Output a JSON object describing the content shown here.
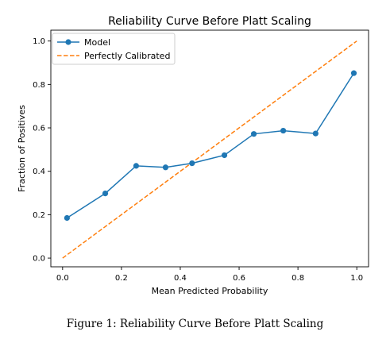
{
  "chart_data": {
    "type": "line",
    "title": "Reliability Curve Before Platt Scaling",
    "xlabel": "Mean Predicted Probability",
    "ylabel": "Fraction of Positives",
    "xlim": [
      -0.04,
      1.04
    ],
    "ylim": [
      -0.04,
      1.05
    ],
    "xticks": [
      0.0,
      0.2,
      0.4,
      0.6,
      0.8,
      1.0
    ],
    "xtick_labels": [
      "0.0",
      "0.2",
      "0.4",
      "0.6",
      "0.8",
      "1.0"
    ],
    "yticks": [
      0.0,
      0.2,
      0.4,
      0.6,
      0.8,
      1.0
    ],
    "ytick_labels": [
      "0.0",
      "0.2",
      "0.4",
      "0.6",
      "0.8",
      "1.0"
    ],
    "grid": false,
    "legend": "top-left",
    "series": [
      {
        "name": "Model",
        "style": "solid-line-with-circle-markers",
        "color": "#1f77b4",
        "x": [
          0.015,
          0.145,
          0.25,
          0.35,
          0.44,
          0.55,
          0.65,
          0.75,
          0.86,
          0.99
        ],
        "y": [
          0.185,
          0.298,
          0.425,
          0.418,
          0.437,
          0.474,
          0.572,
          0.587,
          0.574,
          0.852
        ]
      },
      {
        "name": "Perfectly Calibrated",
        "style": "dashed-line",
        "color": "#ff7f0e",
        "x": [
          0.0,
          1.0
        ],
        "y": [
          0.0,
          1.0
        ]
      }
    ]
  },
  "caption": "Figure 1: Reliability Curve Before Platt Scaling"
}
